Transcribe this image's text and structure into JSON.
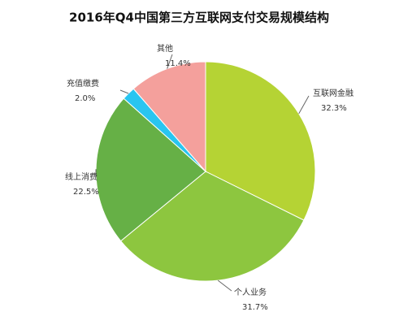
{
  "chart_data": {
    "type": "pie",
    "title": "2016年Q4中国第三方互联网支付交易规模结构",
    "categories": [
      "互联网金融",
      "个人业务",
      "线上消费",
      "充值缴费",
      "其他"
    ],
    "values": [
      32.3,
      31.7,
      22.5,
      2.0,
      11.4
    ],
    "value_labels": [
      "32.3%",
      "31.7%",
      "22.5%",
      "2.0%",
      "11.4%"
    ],
    "colors": [
      "#b5d334",
      "#8dc63f",
      "#66b046",
      "#29c5f0",
      "#f4a09c"
    ]
  }
}
